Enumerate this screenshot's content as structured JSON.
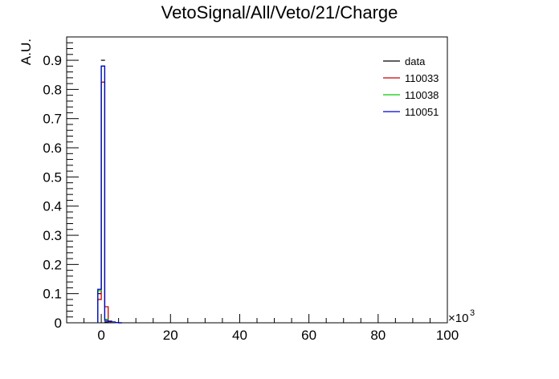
{
  "chart_data": {
    "type": "bar",
    "title": "VetoSignal/All/Veto/21/Charge",
    "ylabel": "A.U.",
    "xlabel": "",
    "x_multiplier": "×10",
    "x_multiplier_exp": "3",
    "xlim": [
      -10,
      100
    ],
    "ylim": [
      0,
      0.98
    ],
    "xticks": [
      0,
      20,
      40,
      60,
      80,
      100
    ],
    "xtick_labels": [
      "0",
      "20",
      "40",
      "60",
      "80",
      "100"
    ],
    "yticks": [
      0,
      0.1,
      0.2,
      0.3,
      0.4,
      0.5,
      0.6,
      0.7,
      0.8,
      0.9
    ],
    "ytick_labels": [
      "0",
      "0.1",
      "0.2",
      "0.3",
      "0.4",
      "0.5",
      "0.6",
      "0.7",
      "0.8",
      "0.9"
    ],
    "grid": false,
    "legend_position": "top-right",
    "bin_width": 1,
    "bin_starts": [
      -1,
      0,
      1,
      2,
      3,
      4,
      5
    ],
    "series": [
      {
        "name": "data",
        "color": "#000000",
        "style": "marker",
        "values": [
          0.1,
          0.9,
          0.003,
          0.001,
          0.0,
          0.0,
          0.0
        ]
      },
      {
        "name": "110033",
        "color": "#cc0000",
        "style": "step",
        "values": [
          0.08,
          0.825,
          0.055,
          0.006,
          0.002,
          0.001,
          0.0
        ]
      },
      {
        "name": "110038",
        "color": "#00cc00",
        "style": "step",
        "values": [
          0.11,
          0.88,
          0.012,
          0.004,
          0.002,
          0.001,
          0.0
        ]
      },
      {
        "name": "110051",
        "color": "#0000cc",
        "style": "step",
        "values": [
          0.115,
          0.88,
          0.008,
          0.004,
          0.003,
          0.001,
          0.0
        ]
      }
    ]
  }
}
